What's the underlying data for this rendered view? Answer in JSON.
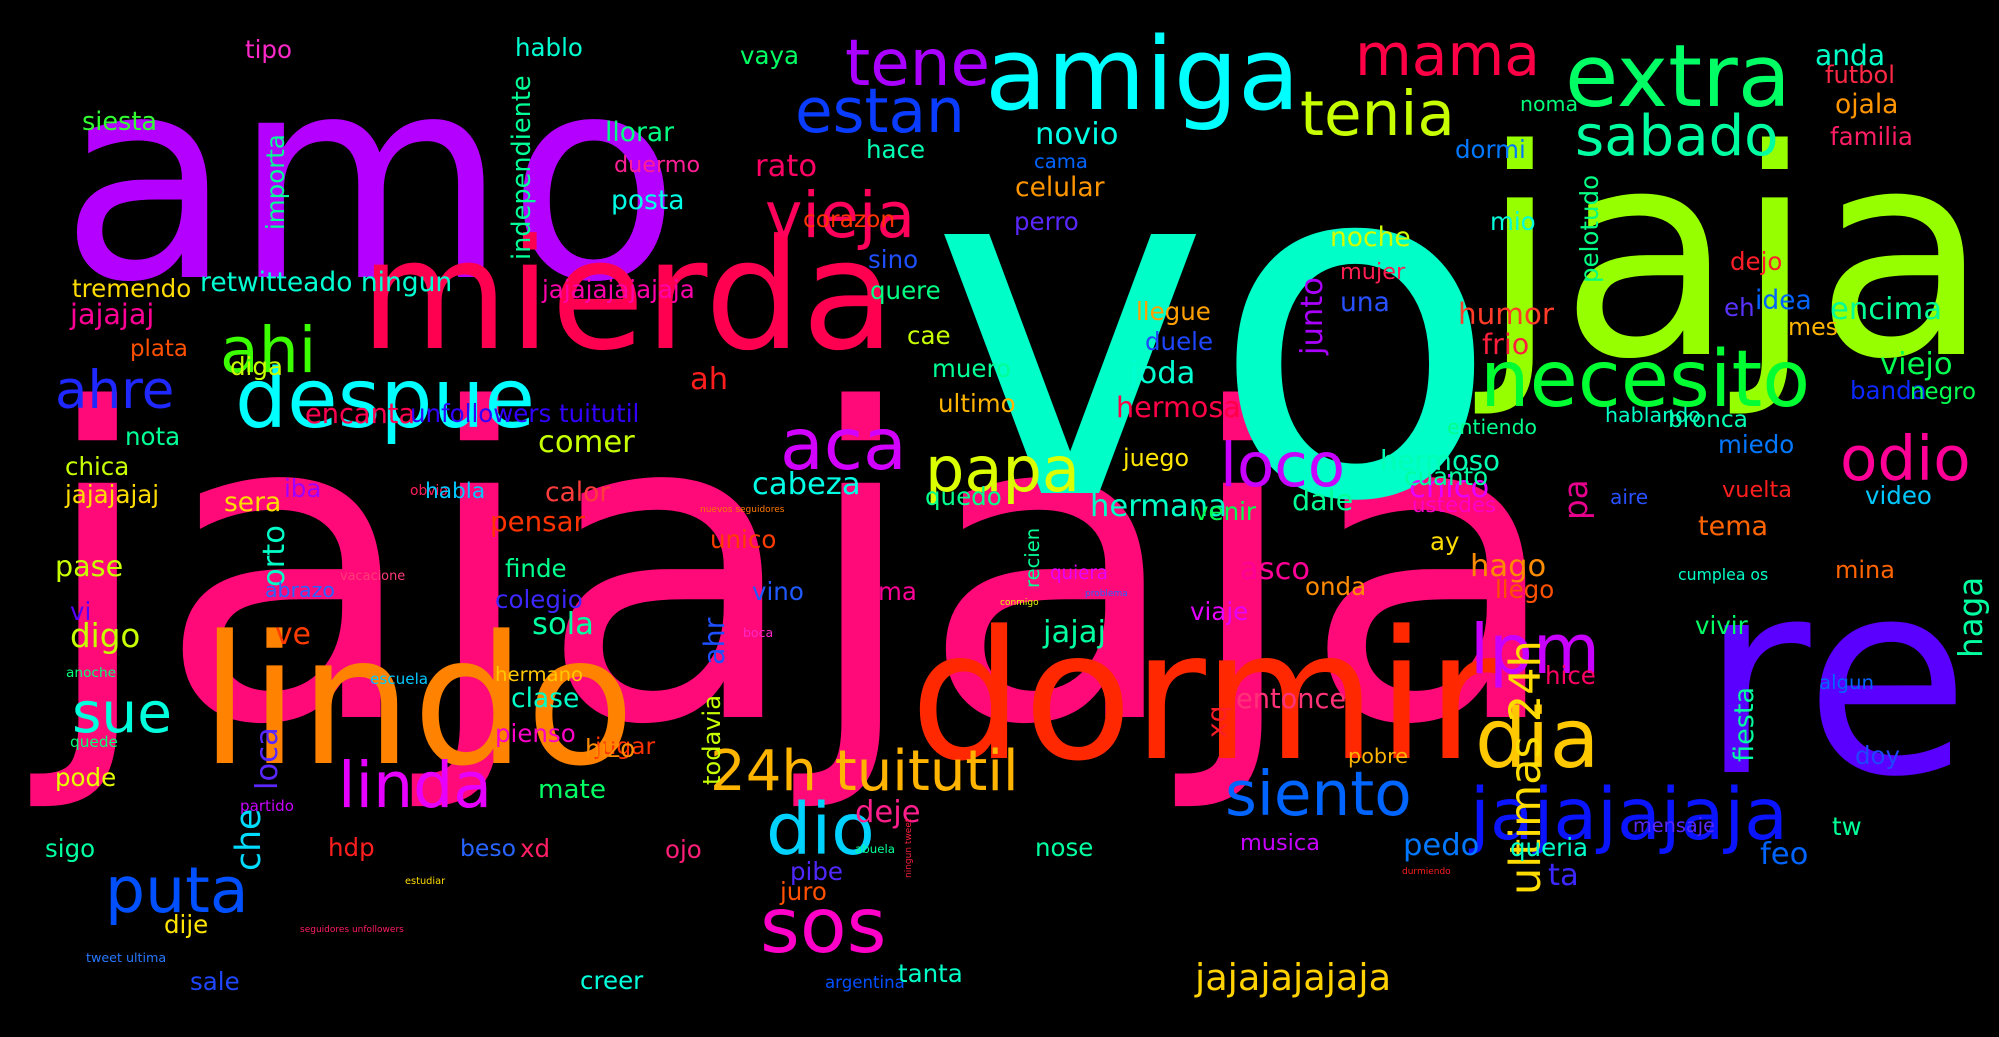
{
  "words": [
    {
      "text": "jajajaja",
      "color": "#ff0a78"
    },
    {
      "text": "vo",
      "color": "#00ffc8"
    },
    {
      "text": "amo",
      "color": "#b400ff"
    },
    {
      "text": "jaja",
      "color": "#96ff00"
    },
    {
      "text": "re",
      "color": "#5a00ff"
    },
    {
      "text": "mierda",
      "color": "#ff0050"
    },
    {
      "text": "dormir",
      "color": "#ff2800"
    },
    {
      "text": "lindo",
      "color": "#ff8200"
    },
    {
      "text": "amiga",
      "color": "#00ffff"
    },
    {
      "text": "extra",
      "color": "#00ff64"
    },
    {
      "text": "mama",
      "color": "#ff0046"
    },
    {
      "text": "despue",
      "color": "#00ffff"
    },
    {
      "text": "jajajajaja",
      "color": "#0a14ff"
    },
    {
      "text": "necesito",
      "color": "#00ff32"
    },
    {
      "text": "dia",
      "color": "#ffc800"
    },
    {
      "text": "sabado",
      "color": "#00ffa0"
    },
    {
      "text": "tenia",
      "color": "#c8ff00"
    },
    {
      "text": "tene",
      "color": "#aa00ff"
    },
    {
      "text": "estan",
      "color": "#0a3cff"
    },
    {
      "text": "aca",
      "color": "#d200ff"
    },
    {
      "text": "papa",
      "color": "#dcff00"
    },
    {
      "text": "loco",
      "color": "#c800ff"
    },
    {
      "text": "odio",
      "color": "#ff0096"
    },
    {
      "text": "lpm",
      "color": "#c800ff"
    },
    {
      "text": "ahi",
      "color": "#3cff00"
    },
    {
      "text": "ahre",
      "color": "#1e28ff"
    },
    {
      "text": "vieja",
      "color": "#ff005a"
    },
    {
      "text": "sos",
      "color": "#ff00c8"
    },
    {
      "text": "siento",
      "color": "#0064ff"
    },
    {
      "text": "linda",
      "color": "#e600ff"
    },
    {
      "text": "24h tuitutil",
      "color": "#ffb400"
    },
    {
      "text": "dio",
      "color": "#00d2ff"
    },
    {
      "text": "puta",
      "color": "#0050ff"
    },
    {
      "text": "sue",
      "color": "#00ffdc"
    },
    {
      "text": "ultimas 24h",
      "color": "#ffdc00"
    },
    {
      "text": "pa",
      "color": "#e6008c"
    },
    {
      "text": "jajajajajaja",
      "color": "#ffd200"
    },
    {
      "text": "novio",
      "color": "#00ffe6"
    },
    {
      "text": "anda",
      "color": "#00ffc8"
    },
    {
      "text": "futbol",
      "color": "#ff2846"
    },
    {
      "text": "ojala",
      "color": "#ff9600"
    },
    {
      "text": "familia",
      "color": "#ff1e64"
    },
    {
      "text": "siesta",
      "color": "#32ff32"
    },
    {
      "text": "tipo",
      "color": "#ff28c8"
    },
    {
      "text": "hablo",
      "color": "#00ffd2"
    },
    {
      "text": "vaya",
      "color": "#00ff64"
    },
    {
      "text": "importa",
      "color": "#00ff96"
    },
    {
      "text": "independiente",
      "color": "#00ff96"
    },
    {
      "text": "llorar",
      "color": "#00ff82"
    },
    {
      "text": "duermo",
      "color": "#ff1e96"
    },
    {
      "text": "posta",
      "color": "#00ffe6"
    },
    {
      "text": "rato",
      "color": "#ff0064"
    },
    {
      "text": "hace",
      "color": "#00ffb4"
    },
    {
      "text": "cama",
      "color": "#0064ff"
    },
    {
      "text": "celular",
      "color": "#ff9600"
    },
    {
      "text": "perro",
      "color": "#5a28ff"
    },
    {
      "text": "noma",
      "color": "#00ff78"
    },
    {
      "text": "dormi",
      "color": "#0078ff"
    },
    {
      "text": "pelotudo",
      "color": "#00ff82"
    },
    {
      "text": "mio",
      "color": "#00ffdc"
    },
    {
      "text": "noche",
      "color": "#d2ff00"
    },
    {
      "text": "mujer",
      "color": "#ff1e50"
    },
    {
      "text": "junto",
      "color": "#aa00ff"
    },
    {
      "text": "una",
      "color": "#2850ff"
    },
    {
      "text": "dejo",
      "color": "#ff1e28"
    },
    {
      "text": "idea",
      "color": "#0064ff"
    },
    {
      "text": "eh",
      "color": "#5a32ff"
    },
    {
      "text": "mes",
      "color": "#ffb400"
    },
    {
      "text": "encima",
      "color": "#00ff96"
    },
    {
      "text": "humor",
      "color": "#ff3c28"
    },
    {
      "text": "frio",
      "color": "#ff1e3c"
    },
    {
      "text": "tremendo",
      "color": "#ffdc00"
    },
    {
      "text": "retwitteado ningun",
      "color": "#00ffd2"
    },
    {
      "text": "jajajajajajaja",
      "color": "#ff00aa"
    },
    {
      "text": "corazon",
      "color": "#ff3200"
    },
    {
      "text": "sino",
      "color": "#1e50ff"
    },
    {
      "text": "quere",
      "color": "#00ff82"
    },
    {
      "text": "llegue",
      "color": "#ffa000"
    },
    {
      "text": "duele",
      "color": "#1e46ff"
    },
    {
      "text": "cae",
      "color": "#c8ff00"
    },
    {
      "text": "muero",
      "color": "#00ff96"
    },
    {
      "text": "ultimo",
      "color": "#ffb400"
    },
    {
      "text": "jajajaj",
      "color": "#ff0096"
    },
    {
      "text": "plata",
      "color": "#ff5000"
    },
    {
      "text": "diga",
      "color": "#c8ff00"
    },
    {
      "text": "encanta",
      "color": "#ff0050"
    },
    {
      "text": "unfollowers tuitutil",
      "color": "#3200ff"
    },
    {
      "text": "ah",
      "color": "#ff1e1e"
    },
    {
      "text": "joda",
      "color": "#00ffd2"
    },
    {
      "text": "hermosa",
      "color": "#ff0046"
    },
    {
      "text": "viejo",
      "color": "#00ff50"
    },
    {
      "text": "banda",
      "color": "#0a28ff"
    },
    {
      "text": "negro",
      "color": "#00ff50"
    },
    {
      "text": "entiendo",
      "color": "#00ff8c"
    },
    {
      "text": "hablando",
      "color": "#00ffc8"
    },
    {
      "text": "bronca",
      "color": "#00ffb4"
    },
    {
      "text": "miedo",
      "color": "#0078ff"
    },
    {
      "text": "nota",
      "color": "#00ff96"
    },
    {
      "text": "chica",
      "color": "#c8ff00"
    },
    {
      "text": "jajajajaj",
      "color": "#ffdc00"
    },
    {
      "text": "comer",
      "color": "#c8ff00"
    },
    {
      "text": "cabeza",
      "color": "#00ffe6"
    },
    {
      "text": "hermoso",
      "color": "#00ffb4"
    },
    {
      "text": "hermana",
      "color": "#00ffc8"
    },
    {
      "text": "juego",
      "color": "#ffe600"
    },
    {
      "text": "chico",
      "color": "#e600ff"
    },
    {
      "text": "aire",
      "color": "#2850ff"
    },
    {
      "text": "video",
      "color": "#00c8ff"
    },
    {
      "text": "ustedes",
      "color": "#ff00c8"
    },
    {
      "text": "cuanto",
      "color": "#00ffa0"
    },
    {
      "text": "dale",
      "color": "#00ff96"
    },
    {
      "text": "vuelta",
      "color": "#ff1e1e"
    },
    {
      "text": "iba",
      "color": "#a000ff"
    },
    {
      "text": "obvio",
      "color": "#ff1e5a"
    },
    {
      "text": "habla",
      "color": "#00c8ff"
    },
    {
      "text": "calor",
      "color": "#ff3c3c"
    },
    {
      "text": "quedo",
      "color": "#00ff8c"
    },
    {
      "text": "venir",
      "color": "#00ff50"
    },
    {
      "text": "ay",
      "color": "#ffdc00"
    },
    {
      "text": "tema",
      "color": "#ff6400"
    },
    {
      "text": "nuevos seguidores",
      "color": "#ff7800"
    },
    {
      "text": "sera",
      "color": "#ffdc00"
    },
    {
      "text": "che",
      "color": "#00dcff"
    },
    {
      "text": "orto",
      "color": "#00ffc8"
    },
    {
      "text": "pensar",
      "color": "#ff3200"
    },
    {
      "text": "recien",
      "color": "#00ff96"
    },
    {
      "text": "unico",
      "color": "#ff3c00"
    },
    {
      "text": "hago",
      "color": "#ff8c00"
    },
    {
      "text": "pase",
      "color": "#c8ff00"
    },
    {
      "text": "asco",
      "color": "#ff0096"
    },
    {
      "text": "cumplea os",
      "color": "#00ffc8"
    },
    {
      "text": "mina",
      "color": "#ff6400"
    },
    {
      "text": "haga",
      "color": "#00ffa0"
    },
    {
      "text": "abrazo",
      "color": "#2864ff"
    },
    {
      "text": "vacacione",
      "color": "#ff3c78"
    },
    {
      "text": "finde",
      "color": "#00ff8c"
    },
    {
      "text": "colegio",
      "color": "#3c28ff"
    },
    {
      "text": "ahr",
      "color": "#1e50ff"
    },
    {
      "text": "vino",
      "color": "#1e5aff"
    },
    {
      "text": "ma",
      "color": "#ff0096"
    },
    {
      "text": "quiera",
      "color": "#e600ff"
    },
    {
      "text": "problema",
      "color": "#2864ff"
    },
    {
      "text": "onda",
      "color": "#ff8c00"
    },
    {
      "text": "llego",
      "color": "#ff5000"
    },
    {
      "text": "vi",
      "color": "#5a00ff"
    },
    {
      "text": "digo",
      "color": "#c8ff00"
    },
    {
      "text": "ve",
      "color": "#ff3c00"
    },
    {
      "text": "sola",
      "color": "#00ffa0"
    },
    {
      "text": "conmigo",
      "color": "#e6ff00"
    },
    {
      "text": "jajaj",
      "color": "#00ffa0"
    },
    {
      "text": "viaje",
      "color": "#e600ff"
    },
    {
      "text": "xq",
      "color": "#ff1e28"
    },
    {
      "text": "vivir",
      "color": "#00ff64"
    },
    {
      "text": "boca",
      "color": "#ff28c8"
    },
    {
      "text": "anoche",
      "color": "#00ff78"
    },
    {
      "text": "escuela",
      "color": "#00c8ff"
    },
    {
      "text": "hermano",
      "color": "#ffc800"
    },
    {
      "text": "clase",
      "color": "#00ffc8"
    },
    {
      "text": "hice",
      "color": "#ff0064"
    },
    {
      "text": "algun",
      "color": "#0064ff"
    },
    {
      "text": "fiesta",
      "color": "#00ffa0"
    },
    {
      "text": "loca",
      "color": "#5a28ff"
    },
    {
      "text": "quede",
      "color": "#00ff78"
    },
    {
      "text": "pienso",
      "color": "#ff00c8"
    },
    {
      "text": "todavia",
      "color": "#c8ff00"
    },
    {
      "text": "jugar",
      "color": "#ff3200"
    },
    {
      "text": "entonce",
      "color": "#ff3278"
    },
    {
      "text": "hizo",
      "color": "#ff8c00"
    },
    {
      "text": "pode",
      "color": "#e6ff00"
    },
    {
      "text": "mate",
      "color": "#00ff64"
    },
    {
      "text": "pobre",
      "color": "#ffb400"
    },
    {
      "text": "doy",
      "color": "#1e46ff"
    },
    {
      "text": "partido",
      "color": "#c800ff"
    },
    {
      "text": "deje",
      "color": "#ff1e8c"
    },
    {
      "text": "mensaje",
      "color": "#5a28ff"
    },
    {
      "text": "tw",
      "color": "#00ff96"
    },
    {
      "text": "sigo",
      "color": "#00ffa0"
    },
    {
      "text": "hdp",
      "color": "#ff1e1e"
    },
    {
      "text": "beso",
      "color": "#2864ff"
    },
    {
      "text": "xd",
      "color": "#ff1e64"
    },
    {
      "text": "ojo",
      "color": "#ff1e78"
    },
    {
      "text": "abuela",
      "color": "#00ff96"
    },
    {
      "text": "ningun tweet",
      "color": "#ff1e3c"
    },
    {
      "text": "pibe",
      "color": "#5028ff"
    },
    {
      "text": "nose",
      "color": "#00ffa0"
    },
    {
      "text": "musica",
      "color": "#c800ff"
    },
    {
      "text": "pedo",
      "color": "#0078ff"
    },
    {
      "text": "queria",
      "color": "#00ffc8"
    },
    {
      "text": "feo",
      "color": "#0064ff"
    },
    {
      "text": "ta",
      "color": "#3c28ff"
    },
    {
      "text": "estudiar",
      "color": "#ffdc00"
    },
    {
      "text": "durmiendo",
      "color": "#ff1e1e"
    },
    {
      "text": "juro",
      "color": "#ff5000"
    },
    {
      "text": "dije",
      "color": "#ffe600"
    },
    {
      "text": "seguidores unfollowers",
      "color": "#ff1e64"
    },
    {
      "text": "tweet ultima",
      "color": "#2878ff"
    },
    {
      "text": "sale",
      "color": "#1e46ff"
    },
    {
      "text": "creer",
      "color": "#00ffdc"
    },
    {
      "text": "argentina",
      "color": "#0050ff"
    },
    {
      "text": "tanta",
      "color": "#00ffc8"
    }
  ]
}
